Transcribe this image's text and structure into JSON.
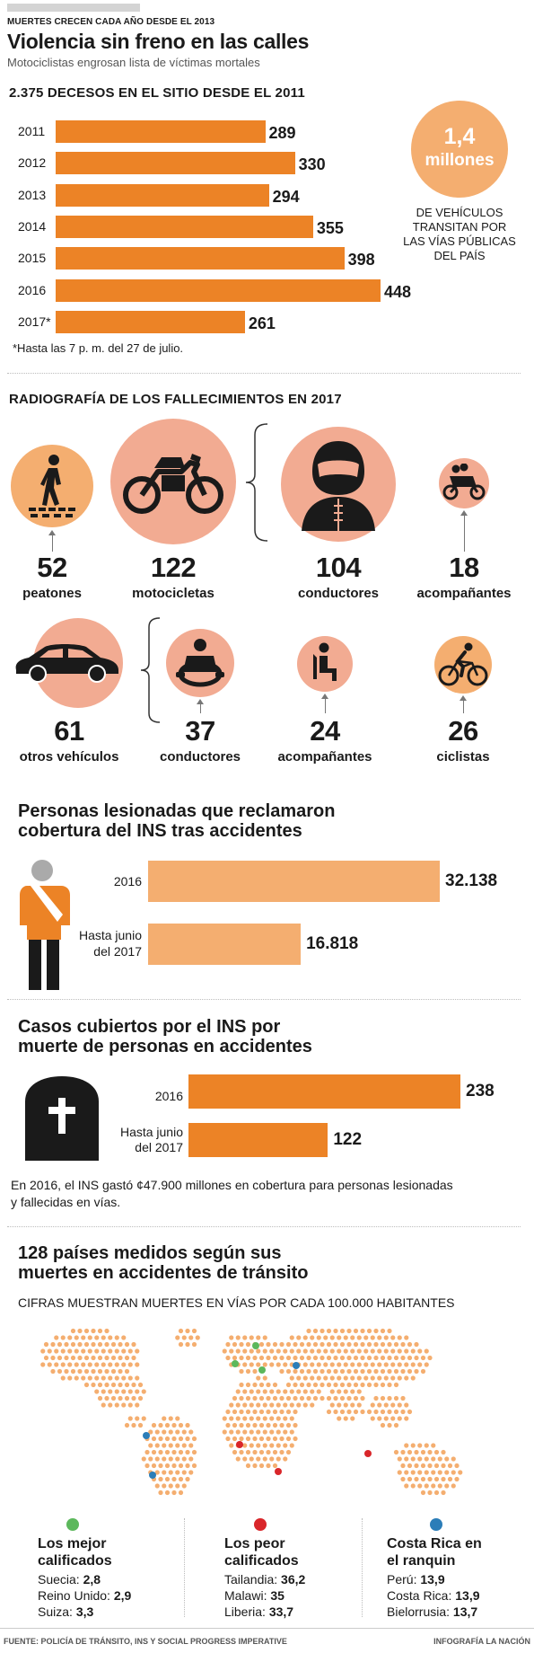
{
  "header": {
    "kicker": "MUERTES CRECEN CADA AÑO DESDE EL 2013",
    "title": "Violencia sin freno en las calles",
    "subtitle": "Motociclistas engrosan lista de víctimas mortales"
  },
  "colors": {
    "orange": "#ec8326",
    "light_orange": "#f4ae70",
    "salmon": "#f2ab92",
    "green": "#5cb85c",
    "red": "#d9262a",
    "blue": "#2b7db8"
  },
  "deaths": {
    "title": "2.375 DECESOS EN EL SITIO DESDE EL 2011",
    "footnote": "*Hasta las 7 p. m. del 27 de julio.",
    "vehicles_value": "1,4",
    "vehicles_unit": "millones",
    "vehicles_text": "DE VEHÍCULOS TRANSITAN POR LAS VÍAS PÚBLICAS DEL PAÍS"
  },
  "radiography": {
    "title": "RADIOGRAFÍA DE LOS FALLECIMIENTOS EN 2017",
    "items": [
      {
        "value": "52",
        "label": "peatones",
        "icon": "pedestrian-icon"
      },
      {
        "value": "122",
        "label": "motocicletas",
        "icon": "motorcycle-icon"
      },
      {
        "value": "104",
        "label": "conductores",
        "icon": "helmet-rider-icon"
      },
      {
        "value": "18",
        "label": "acompañantes",
        "icon": "moto-passenger-icon"
      },
      {
        "value": "61",
        "label": "otros vehículos",
        "icon": "car-icon"
      },
      {
        "value": "37",
        "label": "conductores",
        "icon": "steering-wheel-icon"
      },
      {
        "value": "24",
        "label": "acompañantes",
        "icon": "seated-passenger-icon"
      },
      {
        "value": "26",
        "label": "ciclistas",
        "icon": "cyclist-icon"
      }
    ]
  },
  "injured": {
    "title_line1": "Personas lesionadas que reclamaron",
    "title_line2": "cobertura del INS tras accidentes"
  },
  "fatal": {
    "title_line1": "Casos cubiertos por el INS por",
    "title_line2": "muerte de personas en accidentes",
    "note_line1": "En 2016, el INS gastó ¢47.900 millones en cobertura para personas lesionadas",
    "note_line2": "y fallecidas en vías."
  },
  "world": {
    "title_line1": "128 países medidos según sus",
    "title_line2": "muertes en accidentes de tránsito",
    "subtitle": "CIFRAS MUESTRAN MUERTES EN VÍAS POR CADA 100.000 HABITANTES",
    "best": {
      "title_line1": "Los mejor",
      "title_line2": "calificados",
      "rows": [
        {
          "country": "Suecia:",
          "value": "2,8"
        },
        {
          "country": "Reino Unido:",
          "value": "2,9"
        },
        {
          "country": "Suiza:",
          "value": "3,3"
        }
      ]
    },
    "worst": {
      "title_line1": "Los peor",
      "title_line2": "calificados",
      "rows": [
        {
          "country": "Tailandia:",
          "value": "36,2"
        },
        {
          "country": "Malawi:",
          "value": "35"
        },
        {
          "country": "Liberia:",
          "value": "33,7"
        }
      ]
    },
    "ranking": {
      "title_line1": "Costa Rica en",
      "title_line2": "el ranquin",
      "rows": [
        {
          "country": "Perú:",
          "value": "13,9"
        },
        {
          "country": "Costa Rica:",
          "value": "13,9"
        },
        {
          "country": "Bielorrusia:",
          "value": "13,7"
        }
      ]
    }
  },
  "footer": {
    "source": "FUENTE: POLICÍA DE TRÁNSITO, INS Y SOCIAL PROGRESS IMPERATIVE",
    "credit": "INFOGRAFÍA LA NACIÓN"
  },
  "chart_data": [
    {
      "type": "bar",
      "orientation": "horizontal",
      "title": "2.375 DECESOS EN EL SITIO DESDE EL 2011",
      "categories": [
        "2011",
        "2012",
        "2013",
        "2014",
        "2015",
        "2016",
        "2017*"
      ],
      "values": [
        289,
        330,
        294,
        355,
        398,
        448,
        261
      ],
      "value_labels": [
        "289",
        "330",
        "294",
        "355",
        "398",
        "448",
        "261"
      ],
      "xlim": [
        0,
        448
      ]
    },
    {
      "type": "bar",
      "orientation": "horizontal",
      "title": "Personas lesionadas que reclamaron cobertura del INS tras accidentes",
      "categories": [
        "2016",
        "Hasta junio del 2017"
      ],
      "values": [
        32138,
        16818
      ],
      "value_labels": [
        "32.138",
        "16.818"
      ],
      "xlim": [
        0,
        32138
      ]
    },
    {
      "type": "bar",
      "orientation": "horizontal",
      "title": "Casos cubiertos por el INS por muerte de personas en accidentes",
      "categories": [
        "2016",
        "Hasta junio del 2017"
      ],
      "values": [
        238,
        122
      ],
      "value_labels": [
        "238",
        "122"
      ],
      "xlim": [
        0,
        238
      ]
    }
  ]
}
